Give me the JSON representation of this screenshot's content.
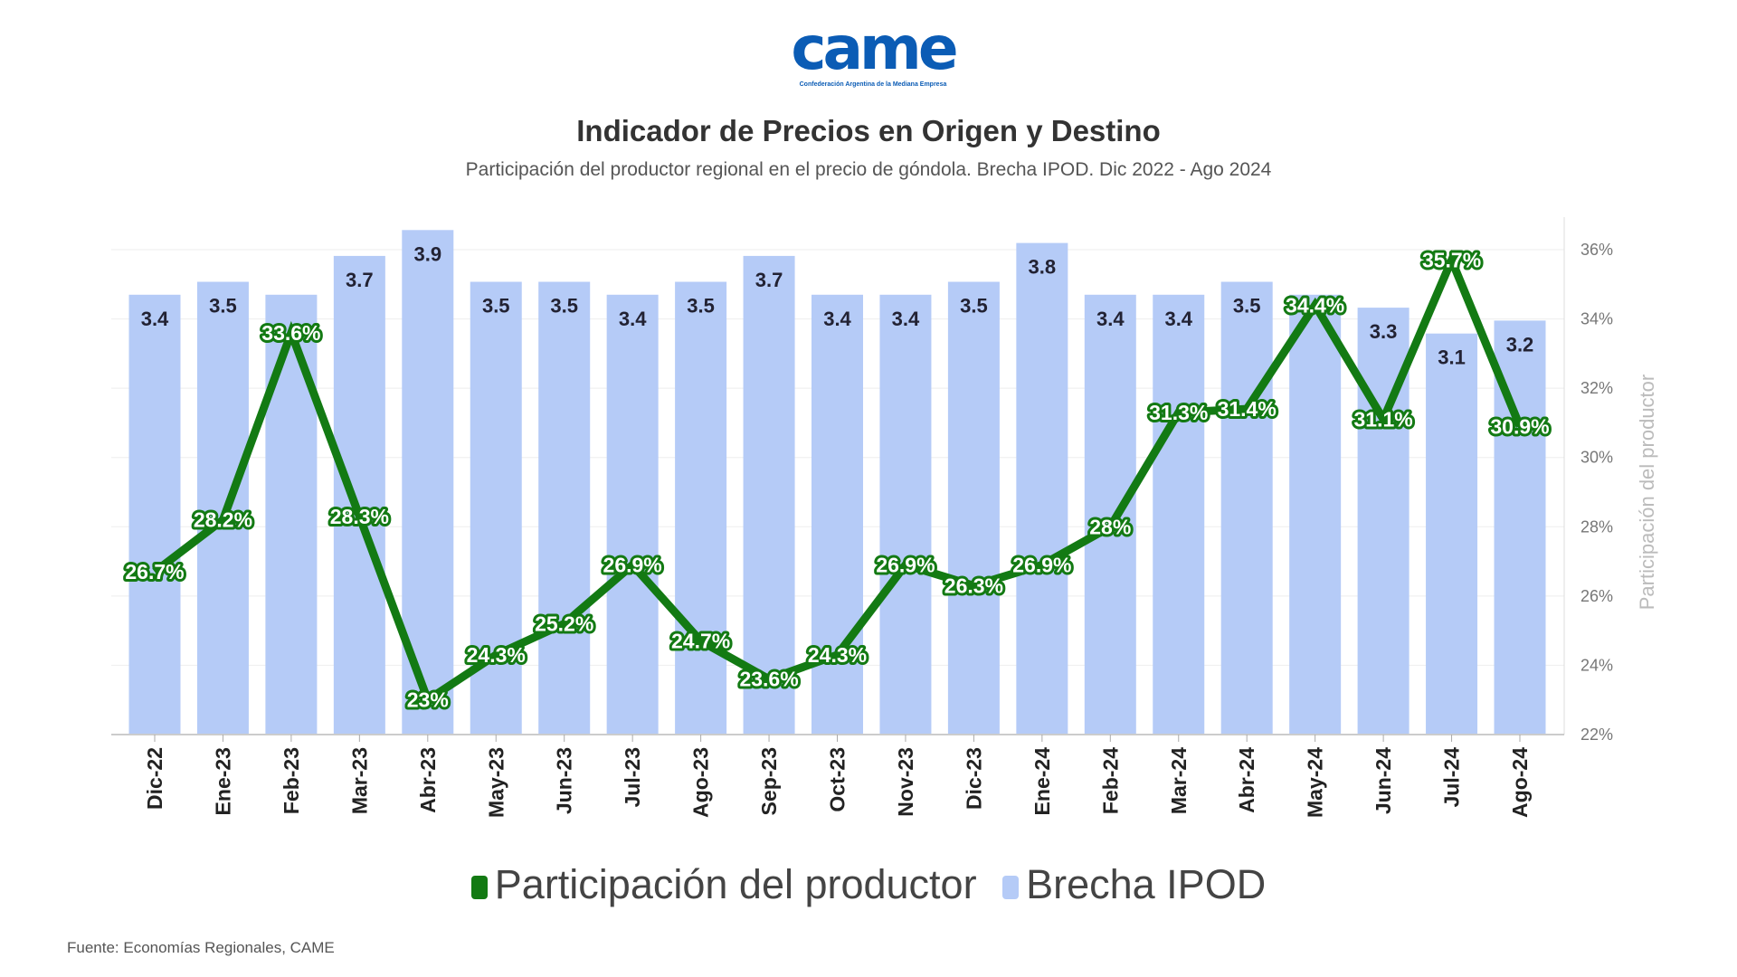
{
  "logo": {
    "text": "came",
    "subtitle": "Confederación Argentina de la Mediana Empresa"
  },
  "title": "Indicador de Precios en Origen y Destino",
  "subtitle": "Participación del productor regional en el precio de góndola. Brecha IPOD. Dic 2022 - Ago 2024",
  "source": "Fuente: Economías Regionales, CAME",
  "colors": {
    "line": "#137a13",
    "bars": "#b5cbf7",
    "brand": "#0b5cb5"
  },
  "chart_data": {
    "type": "bar+line",
    "categories": [
      "Dic-22",
      "Ene-23",
      "Feb-23",
      "Mar-23",
      "Abr-23",
      "May-23",
      "Jun-23",
      "Jul-23",
      "Ago-23",
      "Sep-23",
      "Oct-23",
      "Nov-23",
      "Dic-23",
      "Ene-24",
      "Feb-24",
      "Mar-24",
      "Abr-24",
      "May-24",
      "Jun-24",
      "Jul-24",
      "Ago-24"
    ],
    "series": [
      {
        "name": "Participación del productor",
        "type": "line",
        "axis": "right",
        "values": [
          26.7,
          28.2,
          33.6,
          28.3,
          23,
          24.3,
          25.2,
          26.9,
          24.7,
          23.6,
          24.3,
          26.9,
          26.3,
          26.9,
          28,
          31.3,
          31.4,
          34.4,
          31.1,
          35.7,
          30.9
        ],
        "labels": [
          "26.7%",
          "28.2%",
          "33.6%",
          "28.3%",
          "23%",
          "24.3%",
          "25.2%",
          "26.9%",
          "24.7%",
          "23.6%",
          "24.3%",
          "26.9%",
          "26.3%",
          "26.9%",
          "28%",
          "31.3%",
          "31.4%",
          "34.4%",
          "31.1%",
          "35.7%",
          "30.9%"
        ]
      },
      {
        "name": "Brecha IPOD",
        "type": "bar",
        "axis": "left-hidden",
        "values": [
          3.4,
          3.5,
          3.4,
          3.7,
          3.9,
          3.5,
          3.5,
          3.4,
          3.5,
          3.7,
          3.4,
          3.4,
          3.5,
          3.8,
          3.4,
          3.4,
          3.5,
          3.4,
          3.3,
          3.1,
          3.2
        ],
        "labels": [
          "3.4",
          "3.5",
          "",
          "3.7",
          "3.9",
          "3.5",
          "3.5",
          "3.4",
          "3.5",
          "3.7",
          "3.4",
          "3.4",
          "3.5",
          "3.8",
          "3.4",
          "3.4",
          "3.5",
          "",
          "3.3",
          "3.1",
          "3.2"
        ]
      }
    ],
    "y_right": {
      "label": "Participación del productor",
      "range": [
        22,
        36
      ],
      "ticks": [
        "22%",
        "24%",
        "26%",
        "28%",
        "30%",
        "32%",
        "34%",
        "36%"
      ]
    },
    "grid": true,
    "legend": {
      "position": "bottom",
      "entries": [
        "Participación del productor",
        "Brecha IPOD"
      ]
    }
  }
}
